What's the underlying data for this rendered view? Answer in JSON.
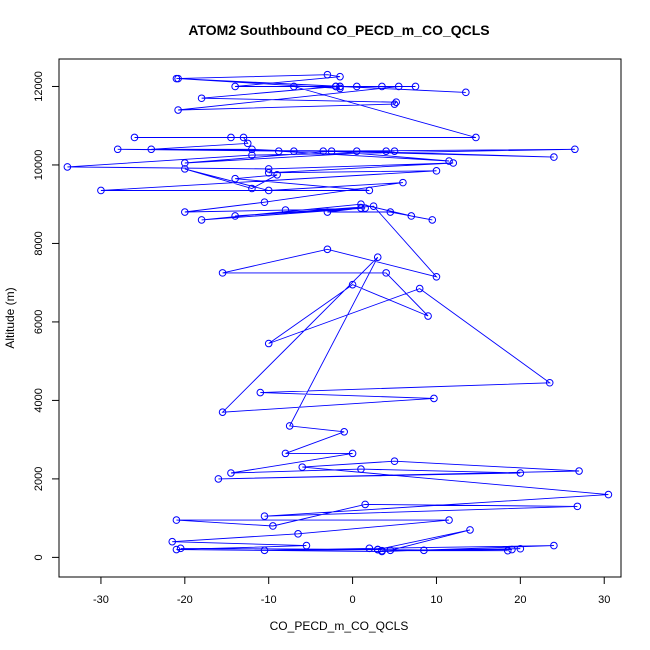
{
  "chart_data": {
    "type": "scatter",
    "title": "ATOM2 Southbound CO_PECD_m_CO_QCLS",
    "xlabel": "CO_PECD_m_CO_QCLS",
    "ylabel": "Altitude (m)",
    "xlim": [
      -35,
      32
    ],
    "ylim": [
      -500,
      12700
    ],
    "xticks": [
      -30,
      -20,
      -10,
      0,
      10,
      20,
      30
    ],
    "yticks": [
      0,
      2000,
      4000,
      6000,
      8000,
      10000,
      12000
    ],
    "xtick_labels": [
      "-30",
      "-20",
      "-10",
      "0",
      "10",
      "20",
      "30"
    ],
    "ytick_labels": [
      "0",
      "2000",
      "4000",
      "6000",
      "8000",
      "10000",
      "12000"
    ],
    "grid": false,
    "legend": "none",
    "color": "#0000ff",
    "series": [
      {
        "x": [
          -21,
          -3,
          -1.5,
          -14,
          5.5,
          -20.8,
          5,
          5.2,
          -18,
          -2,
          7.5,
          -1.5,
          13.5,
          -20.8,
          -1.5,
          -2,
          0.5,
          -1.5,
          3.5,
          -7,
          14.7,
          -26,
          -14.5,
          -13,
          -12.5,
          -24,
          -12,
          -7,
          -28,
          4,
          -8.8,
          11.5,
          -2.5,
          -20,
          5,
          0.5,
          24,
          -3.5,
          26.5,
          -12,
          -34,
          -10,
          12,
          -10,
          10,
          -30,
          2,
          -14,
          -9,
          -12,
          -20,
          -10,
          6,
          -10.5,
          -20,
          -8,
          1.5,
          -18,
          1,
          7,
          9.5,
          4.5,
          -3,
          1,
          -14,
          2.5,
          10,
          -3,
          -15.5,
          4,
          9,
          0,
          -10,
          8,
          23.5,
          -11,
          9.7,
          -15.5,
          3,
          -7.5,
          -1,
          -8,
          0,
          -14.5,
          1,
          20,
          -16,
          27,
          5,
          -6,
          30.5,
          -10.5,
          26.8,
          1.5,
          -9.5,
          -21,
          11.5,
          -6.5,
          -21.5,
          -5.5,
          -21,
          3.5,
          24,
          2,
          -10.5,
          3,
          14,
          4.5,
          19,
          8.5,
          20,
          3.5,
          18.5,
          3,
          -20.5
        ],
        "y": [
          12200,
          12300,
          12250,
          12000,
          12000,
          11400,
          11550,
          11600,
          11700,
          12000,
          12000,
          12000,
          11850,
          12200,
          11950,
          12000,
          12000,
          12000,
          12000,
          12000,
          10700,
          10700,
          10700,
          10700,
          10550,
          10400,
          10400,
          10350,
          10400,
          10350,
          10350,
          10100,
          10350,
          10050,
          10350,
          10350,
          10200,
          10350,
          10400,
          10250,
          9950,
          9900,
          10050,
          9800,
          9850,
          9350,
          9350,
          9650,
          9750,
          9400,
          9900,
          9350,
          9550,
          9050,
          8800,
          8850,
          8900,
          8600,
          9000,
          8700,
          8600,
          8800,
          8800,
          8900,
          8700,
          8950,
          7150,
          7850,
          7250,
          7250,
          6150,
          6950,
          5450,
          6850,
          4450,
          4200,
          4050,
          3700,
          7650,
          3350,
          3200,
          2650,
          2650,
          2150,
          2250,
          2150,
          2000,
          2200,
          2450,
          2300,
          1600,
          1050,
          1300,
          1350,
          800,
          950,
          950,
          600,
          400,
          300,
          200,
          150,
          300,
          230,
          180,
          200,
          700,
          180,
          200,
          180,
          220,
          170,
          170,
          200,
          230
        ]
      }
    ]
  }
}
